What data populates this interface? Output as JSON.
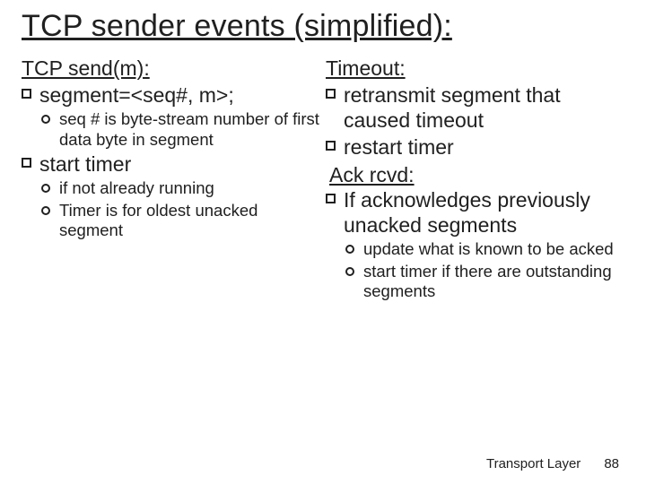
{
  "title": "TCP sender events (simplified):",
  "left": {
    "heading": "TCP  send(m):",
    "items": [
      {
        "text": "segment=<seq#, m>;",
        "sub": [
          "seq # is byte-stream number of first data byte in  segment"
        ]
      },
      {
        "text": "start timer",
        "sub": [
          " if not already running",
          "Timer is for oldest unacked segment"
        ]
      }
    ]
  },
  "right": {
    "heading1": "Timeout:",
    "items1": [
      {
        "text": "retransmit segment that caused timeout",
        "sub": []
      },
      {
        "text": "restart timer",
        "sub": []
      }
    ],
    "heading2": " Ack rcvd:",
    "items2": [
      {
        "text": "If acknowledges previously unacked segments",
        "sub": [
          "update what is known to be acked",
          "start timer if there are outstanding segments"
        ]
      }
    ]
  },
  "footer": {
    "label": "Transport Layer",
    "page": "88"
  },
  "colors": {
    "text": "#202020",
    "bg": "#ffffff"
  }
}
